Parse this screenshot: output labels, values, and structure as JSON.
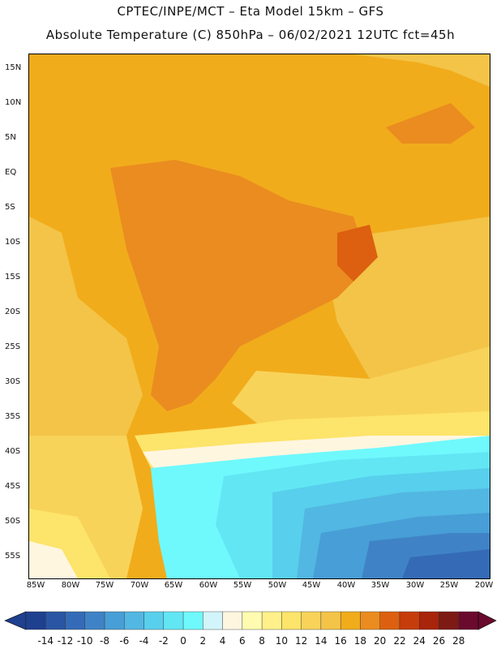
{
  "header": {
    "line1": "CPTEC/INPE/MCT –  Eta Model 15km – GFS",
    "line2": "Absolute Temperature (C) 850hPa – 06/02/2021 12UTC fct=45h"
  },
  "map": {
    "lat_labels": [
      "15N",
      "10N",
      "5N",
      "EQ",
      "5S",
      "10S",
      "15S",
      "20S",
      "25S",
      "30S",
      "35S",
      "40S",
      "45S",
      "50S",
      "55S"
    ],
    "lon_labels": [
      "85W",
      "80W",
      "75W",
      "70W",
      "65W",
      "60W",
      "55W",
      "50W",
      "45W",
      "40W",
      "35W",
      "30W",
      "25W",
      "20W"
    ]
  },
  "colorbar": {
    "labels": [
      "-14",
      "-12",
      "-10",
      "-8",
      "-6",
      "-4",
      "-2",
      "0",
      "2",
      "4",
      "6",
      "8",
      "10",
      "12",
      "14",
      "16",
      "18",
      "20",
      "22",
      "24",
      "26",
      "28"
    ],
    "colors": [
      "#1f3f8f",
      "#2a55a3",
      "#356bb6",
      "#3f83c6",
      "#489ed6",
      "#52b7e2",
      "#58cfec",
      "#62e6f4",
      "#6ff9fd",
      "#d2f5fb",
      "#fff6e0",
      "#fffbb0",
      "#fff08a",
      "#fde46a",
      "#f8d35a",
      "#f3c447",
      "#f1ac1c",
      "#ea8c1f",
      "#dc6010",
      "#c63c0a",
      "#a8240a",
      "#7d1a14",
      "#6a0a2c"
    ]
  }
}
